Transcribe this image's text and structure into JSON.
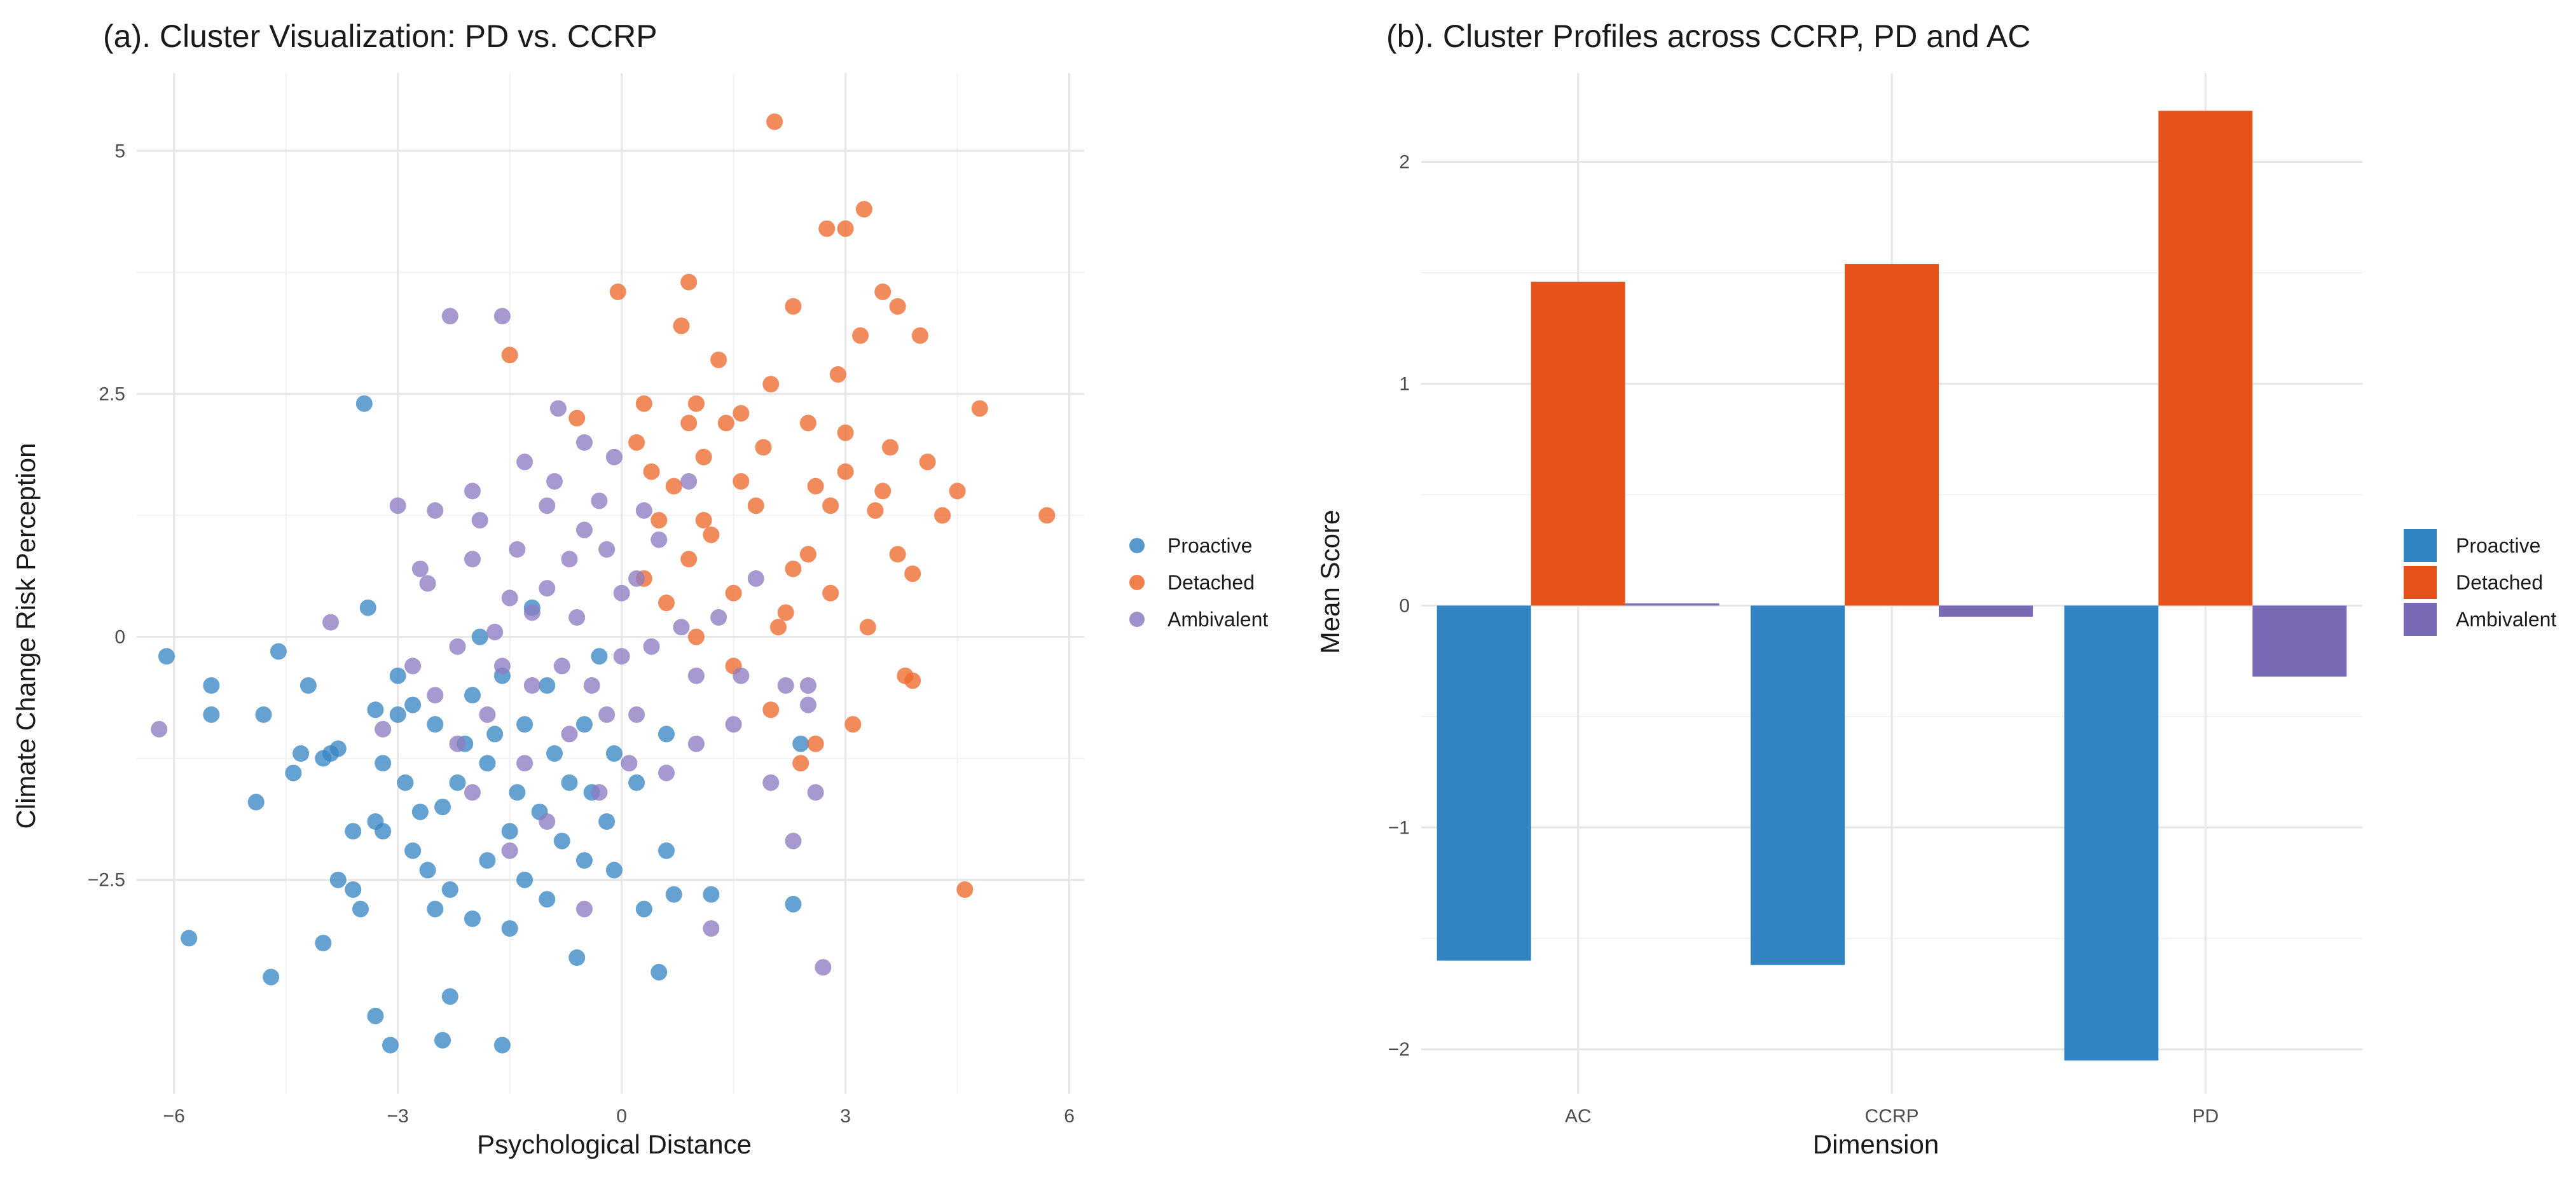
{
  "chart_data": [
    {
      "type": "scatter",
      "title": "(a). Cluster Visualization: PD vs. CCRP",
      "xlabel": "Psychological Distance",
      "ylabel": "Climate Change Risk Perception",
      "xlim": [
        -6.5,
        6.2
      ],
      "ylim": [
        -4.7,
        5.8
      ],
      "x_ticks": [
        -6,
        -3,
        0,
        3,
        6
      ],
      "x_tick_labels": [
        "−6",
        "−3",
        "0",
        "3",
        "6"
      ],
      "y_ticks": [
        -2.5,
        0,
        2.5,
        5
      ],
      "y_tick_labels": [
        "−2.5",
        "0",
        "2.5",
        "5"
      ],
      "legend": {
        "position": "right"
      },
      "series": [
        {
          "name": "Proactive",
          "color": "#3a86c4",
          "points": [
            [
              -6.1,
              -0.2
            ],
            [
              -5.8,
              -3.1
            ],
            [
              -5.5,
              -0.5
            ],
            [
              -5.5,
              -0.8
            ],
            [
              -4.9,
              -1.7
            ],
            [
              -4.8,
              -0.8
            ],
            [
              -4.7,
              -3.5
            ],
            [
              -4.6,
              -0.15
            ],
            [
              -4.4,
              -1.4
            ],
            [
              -4.3,
              -1.2
            ],
            [
              -4.2,
              -0.5
            ],
            [
              -4.0,
              -3.15
            ],
            [
              -4.0,
              -1.25
            ],
            [
              -3.9,
              -1.2
            ],
            [
              -3.8,
              -2.5
            ],
            [
              -3.8,
              -1.15
            ],
            [
              -3.6,
              -2.0
            ],
            [
              -3.6,
              -2.6
            ],
            [
              -3.5,
              -2.8
            ],
            [
              -3.4,
              0.3
            ],
            [
              -3.3,
              -1.9
            ],
            [
              -3.3,
              -0.75
            ],
            [
              -3.3,
              -3.9
            ],
            [
              -3.2,
              -1.3
            ],
            [
              -3.2,
              -2.0
            ],
            [
              -3.1,
              -4.2
            ],
            [
              -3.0,
              -0.4
            ],
            [
              -3.0,
              -0.8
            ],
            [
              -2.9,
              -1.5
            ],
            [
              -2.8,
              -2.2
            ],
            [
              -2.8,
              -0.7
            ],
            [
              -2.7,
              -1.8
            ],
            [
              -2.6,
              -2.4
            ],
            [
              -2.5,
              -0.9
            ],
            [
              -2.5,
              -2.8
            ],
            [
              -2.4,
              -1.75
            ],
            [
              -2.3,
              -3.7
            ],
            [
              -2.3,
              -2.6
            ],
            [
              -2.2,
              -1.5
            ],
            [
              -2.1,
              -1.1
            ],
            [
              -2.0,
              -2.9
            ],
            [
              -2.0,
              -0.6
            ],
            [
              -1.9,
              0.0
            ],
            [
              -1.8,
              -1.3
            ],
            [
              -1.8,
              -2.3
            ],
            [
              -1.7,
              -1.0
            ],
            [
              -1.6,
              -0.4
            ],
            [
              -1.5,
              -2.0
            ],
            [
              -1.5,
              -3.0
            ],
            [
              -1.4,
              -1.6
            ],
            [
              -1.3,
              -0.9
            ],
            [
              -1.3,
              -2.5
            ],
            [
              -1.2,
              0.3
            ],
            [
              -1.1,
              -1.8
            ],
            [
              -1.0,
              -2.7
            ],
            [
              -1.0,
              -0.5
            ],
            [
              -0.9,
              -1.2
            ],
            [
              -0.8,
              -2.1
            ],
            [
              -0.7,
              -1.5
            ],
            [
              -0.6,
              -3.3
            ],
            [
              -0.5,
              -0.9
            ],
            [
              -0.5,
              -2.3
            ],
            [
              -0.4,
              -1.6
            ],
            [
              -0.3,
              -0.2
            ],
            [
              -0.2,
              -1.9
            ],
            [
              -0.1,
              -2.4
            ],
            [
              -0.1,
              -1.2
            ],
            [
              0.2,
              -1.5
            ],
            [
              0.3,
              -2.8
            ],
            [
              0.5,
              -3.45
            ],
            [
              0.6,
              -1.0
            ],
            [
              0.7,
              -2.65
            ],
            [
              -1.6,
              -4.2
            ],
            [
              -2.4,
              -4.15
            ],
            [
              -3.45,
              2.4
            ],
            [
              1.2,
              -2.65
            ],
            [
              2.3,
              -2.75
            ],
            [
              2.4,
              -1.1
            ],
            [
              0.6,
              -2.2
            ]
          ]
        },
        {
          "name": "Detached",
          "color": "#ee6a2e",
          "points": [
            [
              2.05,
              5.3
            ],
            [
              3.25,
              4.4
            ],
            [
              2.75,
              4.2
            ],
            [
              3.0,
              4.2
            ],
            [
              0.9,
              3.65
            ],
            [
              3.5,
              3.55
            ],
            [
              -0.05,
              3.55
            ],
            [
              3.7,
              3.4
            ],
            [
              2.3,
              3.4
            ],
            [
              0.8,
              3.2
            ],
            [
              3.2,
              3.1
            ],
            [
              -1.5,
              2.9
            ],
            [
              1.3,
              2.85
            ],
            [
              2.0,
              2.6
            ],
            [
              0.3,
              2.4
            ],
            [
              1.0,
              2.4
            ],
            [
              1.6,
              2.3
            ],
            [
              2.5,
              2.2
            ],
            [
              3.0,
              2.1
            ],
            [
              0.2,
              2.0
            ],
            [
              -0.6,
              2.25
            ],
            [
              3.6,
              1.95
            ],
            [
              4.1,
              1.8
            ],
            [
              1.1,
              1.85
            ],
            [
              2.6,
              1.55
            ],
            [
              2.8,
              1.35
            ],
            [
              1.8,
              1.35
            ],
            [
              0.5,
              1.2
            ],
            [
              1.1,
              1.2
            ],
            [
              3.4,
              1.3
            ],
            [
              0.3,
              0.6
            ],
            [
              1.5,
              0.45
            ],
            [
              2.3,
              0.7
            ],
            [
              2.8,
              0.45
            ],
            [
              0.9,
              0.8
            ],
            [
              3.9,
              0.65
            ],
            [
              4.3,
              1.25
            ],
            [
              4.8,
              2.35
            ],
            [
              5.7,
              1.25
            ],
            [
              4.6,
              -2.6
            ],
            [
              3.7,
              0.85
            ],
            [
              3.9,
              -0.45
            ],
            [
              1.5,
              -0.3
            ],
            [
              2.0,
              -0.75
            ],
            [
              2.6,
              -1.1
            ],
            [
              3.1,
              -0.9
            ],
            [
              3.8,
              -0.4
            ],
            [
              0.6,
              0.35
            ],
            [
              1.0,
              0.0
            ],
            [
              2.4,
              -1.3
            ],
            [
              1.6,
              1.6
            ],
            [
              2.1,
              0.1
            ],
            [
              3.3,
              0.1
            ],
            [
              0.7,
              1.55
            ],
            [
              1.9,
              1.95
            ],
            [
              2.5,
              0.85
            ],
            [
              4.5,
              1.5
            ],
            [
              1.4,
              2.2
            ],
            [
              0.4,
              1.7
            ],
            [
              3.5,
              1.5
            ],
            [
              2.9,
              2.7
            ],
            [
              1.2,
              1.05
            ],
            [
              4.0,
              3.1
            ],
            [
              2.2,
              0.25
            ],
            [
              3.0,
              1.7
            ],
            [
              0.9,
              2.2
            ]
          ]
        },
        {
          "name": "Ambivalent",
          "color": "#8e7cc3",
          "points": [
            [
              -2.3,
              3.3
            ],
            [
              -1.6,
              3.3
            ],
            [
              -0.85,
              2.35
            ],
            [
              -0.5,
              2.0
            ],
            [
              -1.3,
              1.8
            ],
            [
              -3.0,
              1.35
            ],
            [
              -2.5,
              1.3
            ],
            [
              -2.0,
              1.5
            ],
            [
              -1.0,
              1.35
            ],
            [
              -0.3,
              1.4
            ],
            [
              -3.9,
              0.15
            ],
            [
              -6.2,
              -0.95
            ],
            [
              -3.2,
              -0.95
            ],
            [
              -2.6,
              0.55
            ],
            [
              -2.0,
              0.8
            ],
            [
              -1.5,
              0.4
            ],
            [
              -1.0,
              0.5
            ],
            [
              -0.6,
              0.2
            ],
            [
              -0.2,
              0.9
            ],
            [
              0.2,
              0.6
            ],
            [
              0.5,
              1.0
            ],
            [
              -2.8,
              -0.3
            ],
            [
              -2.2,
              -0.1
            ],
            [
              -1.7,
              0.05
            ],
            [
              -1.2,
              0.25
            ],
            [
              -0.8,
              -0.3
            ],
            [
              -0.4,
              -0.5
            ],
            [
              0.0,
              -0.2
            ],
            [
              0.4,
              -0.1
            ],
            [
              0.8,
              0.1
            ],
            [
              1.3,
              0.2
            ],
            [
              1.6,
              -0.4
            ],
            [
              2.2,
              -0.5
            ],
            [
              2.5,
              -0.7
            ],
            [
              -2.5,
              -0.6
            ],
            [
              -1.8,
              -0.8
            ],
            [
              -1.3,
              -1.3
            ],
            [
              -0.7,
              -1.0
            ],
            [
              -0.3,
              -1.6
            ],
            [
              0.1,
              -1.3
            ],
            [
              0.6,
              -1.4
            ],
            [
              1.0,
              -1.1
            ],
            [
              1.5,
              -0.9
            ],
            [
              2.0,
              -1.5
            ],
            [
              2.3,
              -2.1
            ],
            [
              2.6,
              -1.6
            ],
            [
              2.7,
              -3.4
            ],
            [
              1.2,
              -3.0
            ],
            [
              -0.5,
              -2.8
            ],
            [
              -1.0,
              -1.9
            ],
            [
              -1.5,
              -2.2
            ],
            [
              -2.0,
              -1.6
            ],
            [
              -0.1,
              1.85
            ],
            [
              0.3,
              1.3
            ],
            [
              0.9,
              1.6
            ],
            [
              -0.7,
              0.8
            ],
            [
              -1.9,
              1.2
            ],
            [
              -2.7,
              0.7
            ],
            [
              -1.2,
              -0.5
            ],
            [
              0.2,
              -0.8
            ],
            [
              1.8,
              0.6
            ],
            [
              -0.9,
              1.6
            ],
            [
              -1.6,
              -0.3
            ],
            [
              0.0,
              0.45
            ],
            [
              -2.2,
              -1.1
            ],
            [
              -0.5,
              1.1
            ],
            [
              1.0,
              -0.4
            ],
            [
              2.5,
              -0.5
            ],
            [
              -1.4,
              0.9
            ],
            [
              -0.2,
              -0.8
            ]
          ]
        }
      ]
    },
    {
      "type": "bar",
      "title": "(b). Cluster Profiles across CCRP, PD and AC",
      "xlabel": "Dimension",
      "ylabel": "Mean Score",
      "categories": [
        "AC",
        "CCRP",
        "PD"
      ],
      "ylim": [
        -2.2,
        2.4
      ],
      "y_ticks": [
        -2,
        -1,
        0,
        1,
        2
      ],
      "y_tick_labels": [
        "−2",
        "−1",
        "0",
        "1",
        "2"
      ],
      "legend": {
        "position": "right"
      },
      "series": [
        {
          "name": "Proactive",
          "color": "#3283c1",
          "values": [
            -1.6,
            -1.62,
            -2.05
          ]
        },
        {
          "name": "Detached",
          "color": "#e5531a",
          "values": [
            1.46,
            1.54,
            2.23
          ]
        },
        {
          "name": "Ambivalent",
          "color": "#7a69b5",
          "values": [
            0.01,
            -0.05,
            -0.32
          ]
        }
      ]
    }
  ]
}
